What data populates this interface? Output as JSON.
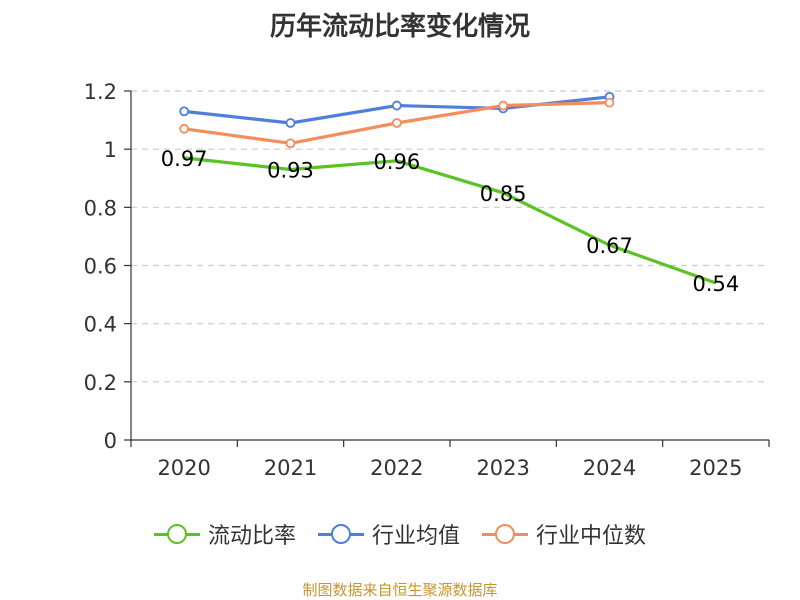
{
  "chart_data": {
    "type": "line",
    "title": "历年流动比率变化情况",
    "categories": [
      "2020",
      "2021",
      "2022",
      "2023",
      "2024",
      "2025"
    ],
    "ylim": [
      0,
      1.2
    ],
    "yticks": [
      "0",
      "0.2",
      "0.4",
      "0.6",
      "0.8",
      "1",
      "1.2"
    ],
    "ytick_values": [
      0,
      0.2,
      0.4,
      0.6,
      0.8,
      1.0,
      1.2
    ],
    "grid": true,
    "legend_position": "bottom",
    "series": [
      {
        "name": "流动比率",
        "color": "#5bc424",
        "values": [
          0.97,
          0.93,
          0.96,
          0.85,
          0.67,
          0.54
        ],
        "labels": [
          "0.97",
          "0.93",
          "0.96",
          "0.85",
          "0.67",
          "0.54"
        ]
      },
      {
        "name": "行业均值",
        "color": "#4f7fdb",
        "values": [
          1.13,
          1.09,
          1.15,
          1.14,
          1.18,
          null
        ]
      },
      {
        "name": "行业中位数",
        "color": "#f48c5c",
        "values": [
          1.07,
          1.02,
          1.09,
          1.15,
          1.16,
          null
        ]
      }
    ],
    "source": "制图数据来自恒生聚源数据库"
  }
}
